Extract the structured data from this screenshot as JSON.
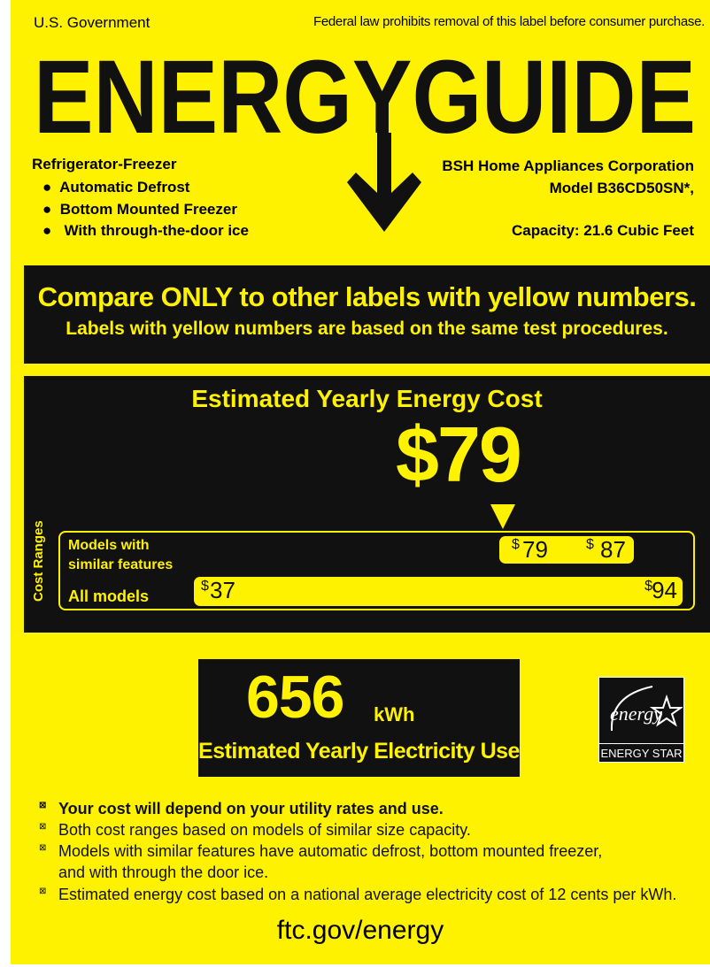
{
  "header": {
    "left": "U.S. Government",
    "right": "Federal law prohibits removal of this label before consumer purchase."
  },
  "logo": {
    "text": "ENERGYGUIDE"
  },
  "product": {
    "type": "Refrigerator-Freezer",
    "features": [
      "Automatic Defrost",
      "Bottom Mounted Freezer",
      "With through-the-door ice"
    ]
  },
  "manufacturer": {
    "name": "BSH Home Appliances Corporation",
    "model": "Model B36CD50SN*,",
    "capacity": "Capacity: 21.6 Cubic Feet"
  },
  "compare": {
    "headline": "Compare ONLY to other labels with yellow numbers.",
    "sub": "Labels with yellow numbers are based on the same test procedures."
  },
  "cost": {
    "title": "Estimated Yearly Energy Cost",
    "value": "$79",
    "ranges_label": "Cost Ranges",
    "similar": {
      "label_1": "Models with",
      "label_2": "similar features",
      "low": "79",
      "high": "87"
    },
    "all": {
      "label": "All models",
      "low": "37",
      "high": "94"
    },
    "currency": "$"
  },
  "electricity": {
    "value": "656",
    "unit": "kWh",
    "label": "Estimated Yearly Electricity Use"
  },
  "energy_star": {
    "script": "energy",
    "label": "ENERGY STAR"
  },
  "notes": [
    "Your cost will depend on your utility rates and use.",
    "Both cost ranges based on models of similar size capacity.",
    "Models with similar features have automatic defrost, bottom mounted freezer,",
    "and with through the door ice.",
    "Estimated energy cost based on a national average electricity cost of 12 cents per kWh."
  ],
  "bullet_glyph": "⊠",
  "footer": {
    "url": "ftc.gov/energy"
  },
  "colors": {
    "yellow": "#FFF200",
    "black": "#111111"
  }
}
